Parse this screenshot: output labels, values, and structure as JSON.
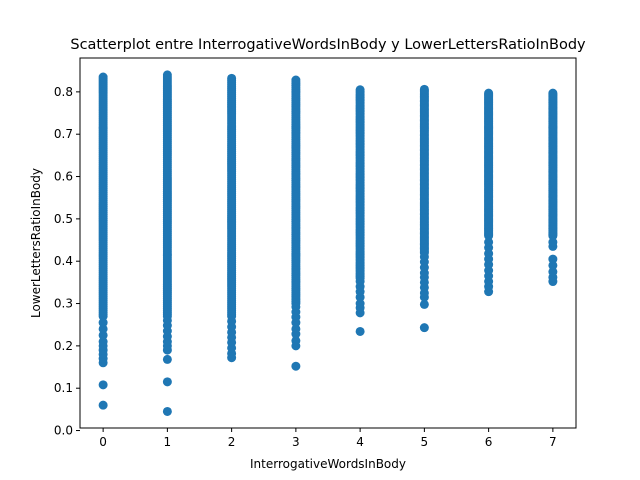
{
  "chart_data": {
    "type": "scatter",
    "title": "Scatterplot entre InterrogativeWordsInBody y LowerLettersRatioInBody",
    "xlabel": "InterrogativeWordsInBody",
    "ylabel": "LowerLettersRatioInBody",
    "xlim": [
      -0.36,
      7.36
    ],
    "ylim": [
      0.006,
      0.88
    ],
    "xticks": [
      0,
      1,
      2,
      3,
      4,
      5,
      6,
      7
    ],
    "yticks": [
      0.0,
      0.1,
      0.2,
      0.3,
      0.4,
      0.5,
      0.6,
      0.7,
      0.8
    ],
    "xtick_labels": [
      "0",
      "1",
      "2",
      "3",
      "4",
      "5",
      "6",
      "7"
    ],
    "ytick_labels": [
      "0.0",
      "0.1",
      "0.2",
      "0.3",
      "0.4",
      "0.5",
      "0.6",
      "0.7",
      "0.8"
    ],
    "grid": false,
    "color": "#1f77b4",
    "dense_ranges": [
      {
        "x": 0,
        "y_min": 0.27,
        "y_max": 0.835
      },
      {
        "x": 1,
        "y_min": 0.27,
        "y_max": 0.84
      },
      {
        "x": 2,
        "y_min": 0.27,
        "y_max": 0.832
      },
      {
        "x": 3,
        "y_min": 0.3,
        "y_max": 0.828
      },
      {
        "x": 4,
        "y_min": 0.36,
        "y_max": 0.805
      },
      {
        "x": 5,
        "y_min": 0.42,
        "y_max": 0.806
      },
      {
        "x": 6,
        "y_min": 0.46,
        "y_max": 0.797
      },
      {
        "x": 7,
        "y_min": 0.46,
        "y_max": 0.797
      }
    ],
    "points": [
      {
        "x": 0,
        "y": 0.06
      },
      {
        "x": 0,
        "y": 0.108
      },
      {
        "x": 0,
        "y": 0.16
      },
      {
        "x": 0,
        "y": 0.17
      },
      {
        "x": 0,
        "y": 0.18
      },
      {
        "x": 0,
        "y": 0.19
      },
      {
        "x": 0,
        "y": 0.2
      },
      {
        "x": 0,
        "y": 0.21
      },
      {
        "x": 0,
        "y": 0.225
      },
      {
        "x": 0,
        "y": 0.24
      },
      {
        "x": 0,
        "y": 0.255
      },
      {
        "x": 1,
        "y": 0.045
      },
      {
        "x": 1,
        "y": 0.115
      },
      {
        "x": 1,
        "y": 0.168
      },
      {
        "x": 1,
        "y": 0.19
      },
      {
        "x": 1,
        "y": 0.2
      },
      {
        "x": 1,
        "y": 0.21
      },
      {
        "x": 1,
        "y": 0.222
      },
      {
        "x": 1,
        "y": 0.235
      },
      {
        "x": 1,
        "y": 0.248
      },
      {
        "x": 1,
        "y": 0.26
      },
      {
        "x": 2,
        "y": 0.172
      },
      {
        "x": 2,
        "y": 0.182
      },
      {
        "x": 2,
        "y": 0.195
      },
      {
        "x": 2,
        "y": 0.208
      },
      {
        "x": 2,
        "y": 0.22
      },
      {
        "x": 2,
        "y": 0.232
      },
      {
        "x": 2,
        "y": 0.245
      },
      {
        "x": 2,
        "y": 0.258
      },
      {
        "x": 3,
        "y": 0.152
      },
      {
        "x": 3,
        "y": 0.2
      },
      {
        "x": 3,
        "y": 0.212
      },
      {
        "x": 3,
        "y": 0.228
      },
      {
        "x": 3,
        "y": 0.24
      },
      {
        "x": 3,
        "y": 0.255
      },
      {
        "x": 3,
        "y": 0.268
      },
      {
        "x": 3,
        "y": 0.28
      },
      {
        "x": 3,
        "y": 0.292
      },
      {
        "x": 4,
        "y": 0.234
      },
      {
        "x": 4,
        "y": 0.278
      },
      {
        "x": 4,
        "y": 0.29
      },
      {
        "x": 4,
        "y": 0.3
      },
      {
        "x": 4,
        "y": 0.315
      },
      {
        "x": 4,
        "y": 0.328
      },
      {
        "x": 4,
        "y": 0.34
      },
      {
        "x": 4,
        "y": 0.352
      },
      {
        "x": 5,
        "y": 0.243
      },
      {
        "x": 5,
        "y": 0.298
      },
      {
        "x": 5,
        "y": 0.315
      },
      {
        "x": 5,
        "y": 0.325
      },
      {
        "x": 5,
        "y": 0.338
      },
      {
        "x": 5,
        "y": 0.35
      },
      {
        "x": 5,
        "y": 0.362
      },
      {
        "x": 5,
        "y": 0.372
      },
      {
        "x": 5,
        "y": 0.385
      },
      {
        "x": 5,
        "y": 0.398
      },
      {
        "x": 5,
        "y": 0.41
      },
      {
        "x": 6,
        "y": 0.328
      },
      {
        "x": 6,
        "y": 0.34
      },
      {
        "x": 6,
        "y": 0.352
      },
      {
        "x": 6,
        "y": 0.365
      },
      {
        "x": 6,
        "y": 0.378
      },
      {
        "x": 6,
        "y": 0.392
      },
      {
        "x": 6,
        "y": 0.405
      },
      {
        "x": 6,
        "y": 0.418
      },
      {
        "x": 6,
        "y": 0.432
      },
      {
        "x": 6,
        "y": 0.445
      },
      {
        "x": 7,
        "y": 0.352
      },
      {
        "x": 7,
        "y": 0.362
      },
      {
        "x": 7,
        "y": 0.375
      },
      {
        "x": 7,
        "y": 0.39
      },
      {
        "x": 7,
        "y": 0.405
      },
      {
        "x": 7,
        "y": 0.435
      },
      {
        "x": 7,
        "y": 0.445
      }
    ]
  }
}
